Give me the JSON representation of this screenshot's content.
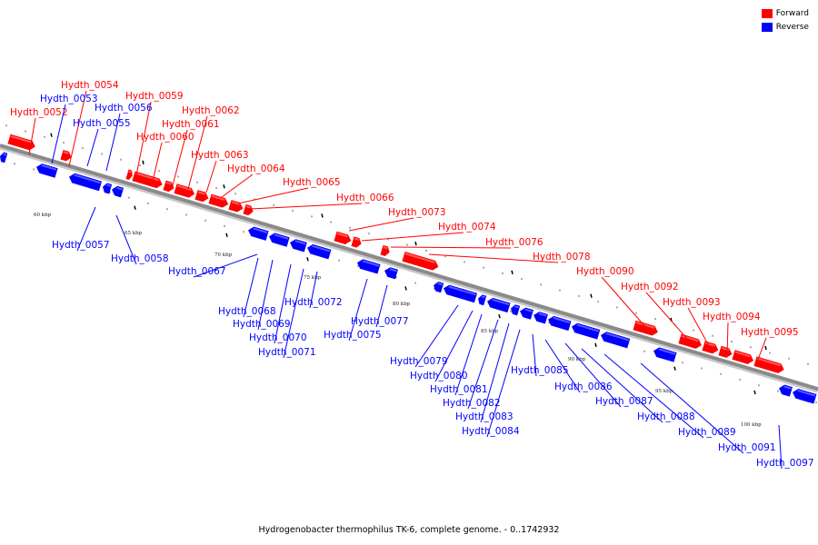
{
  "caption": "Hydrogenobacter thermophilus TK-6, complete genome. - 0..1742932",
  "colors": {
    "forward": "#ff0000",
    "reverse": "#0000ff",
    "backbone": "#8a8a8a"
  },
  "legend": [
    {
      "label": "Forward",
      "color": "#ff0000"
    },
    {
      "label": "Reverse",
      "color": "#0000ff"
    }
  ],
  "tick_labels": [
    "60 kbp",
    "65 kbp",
    "70 kbp",
    "75 kbp",
    "80 kbp",
    "85 kbp",
    "90 kbp",
    "95 kbp",
    "100 kbp"
  ],
  "genes_forward": [
    "Hydth_0052",
    "Hydth_0054",
    "Hydth_0059",
    "Hydth_0060",
    "Hydth_0061",
    "Hydth_0062",
    "Hydth_0063",
    "Hydth_0064",
    "Hydth_0065",
    "Hydth_0066",
    "Hydth_0073",
    "Hydth_0074",
    "Hydth_0076",
    "Hydth_0078",
    "Hydth_0090",
    "Hydth_0092",
    "Hydth_0093",
    "Hydth_0094",
    "Hydth_0095"
  ],
  "genes_reverse": [
    "Hydth_0053",
    "Hydth_0055",
    "Hydth_0056",
    "Hydth_0057",
    "Hydth_0058",
    "Hydth_0067",
    "Hydth_0068",
    "Hydth_0069",
    "Hydth_0070",
    "Hydth_0071",
    "Hydth_0072",
    "Hydth_0075",
    "Hydth_0077",
    "Hydth_0079",
    "Hydth_0080",
    "Hydth_0081",
    "Hydth_0082",
    "Hydth_0083",
    "Hydth_0084",
    "Hydth_0085",
    "Hydth_0086",
    "Hydth_0087",
    "Hydth_0088",
    "Hydth_0089",
    "Hydth_0091",
    "Hydth_0097"
  ]
}
